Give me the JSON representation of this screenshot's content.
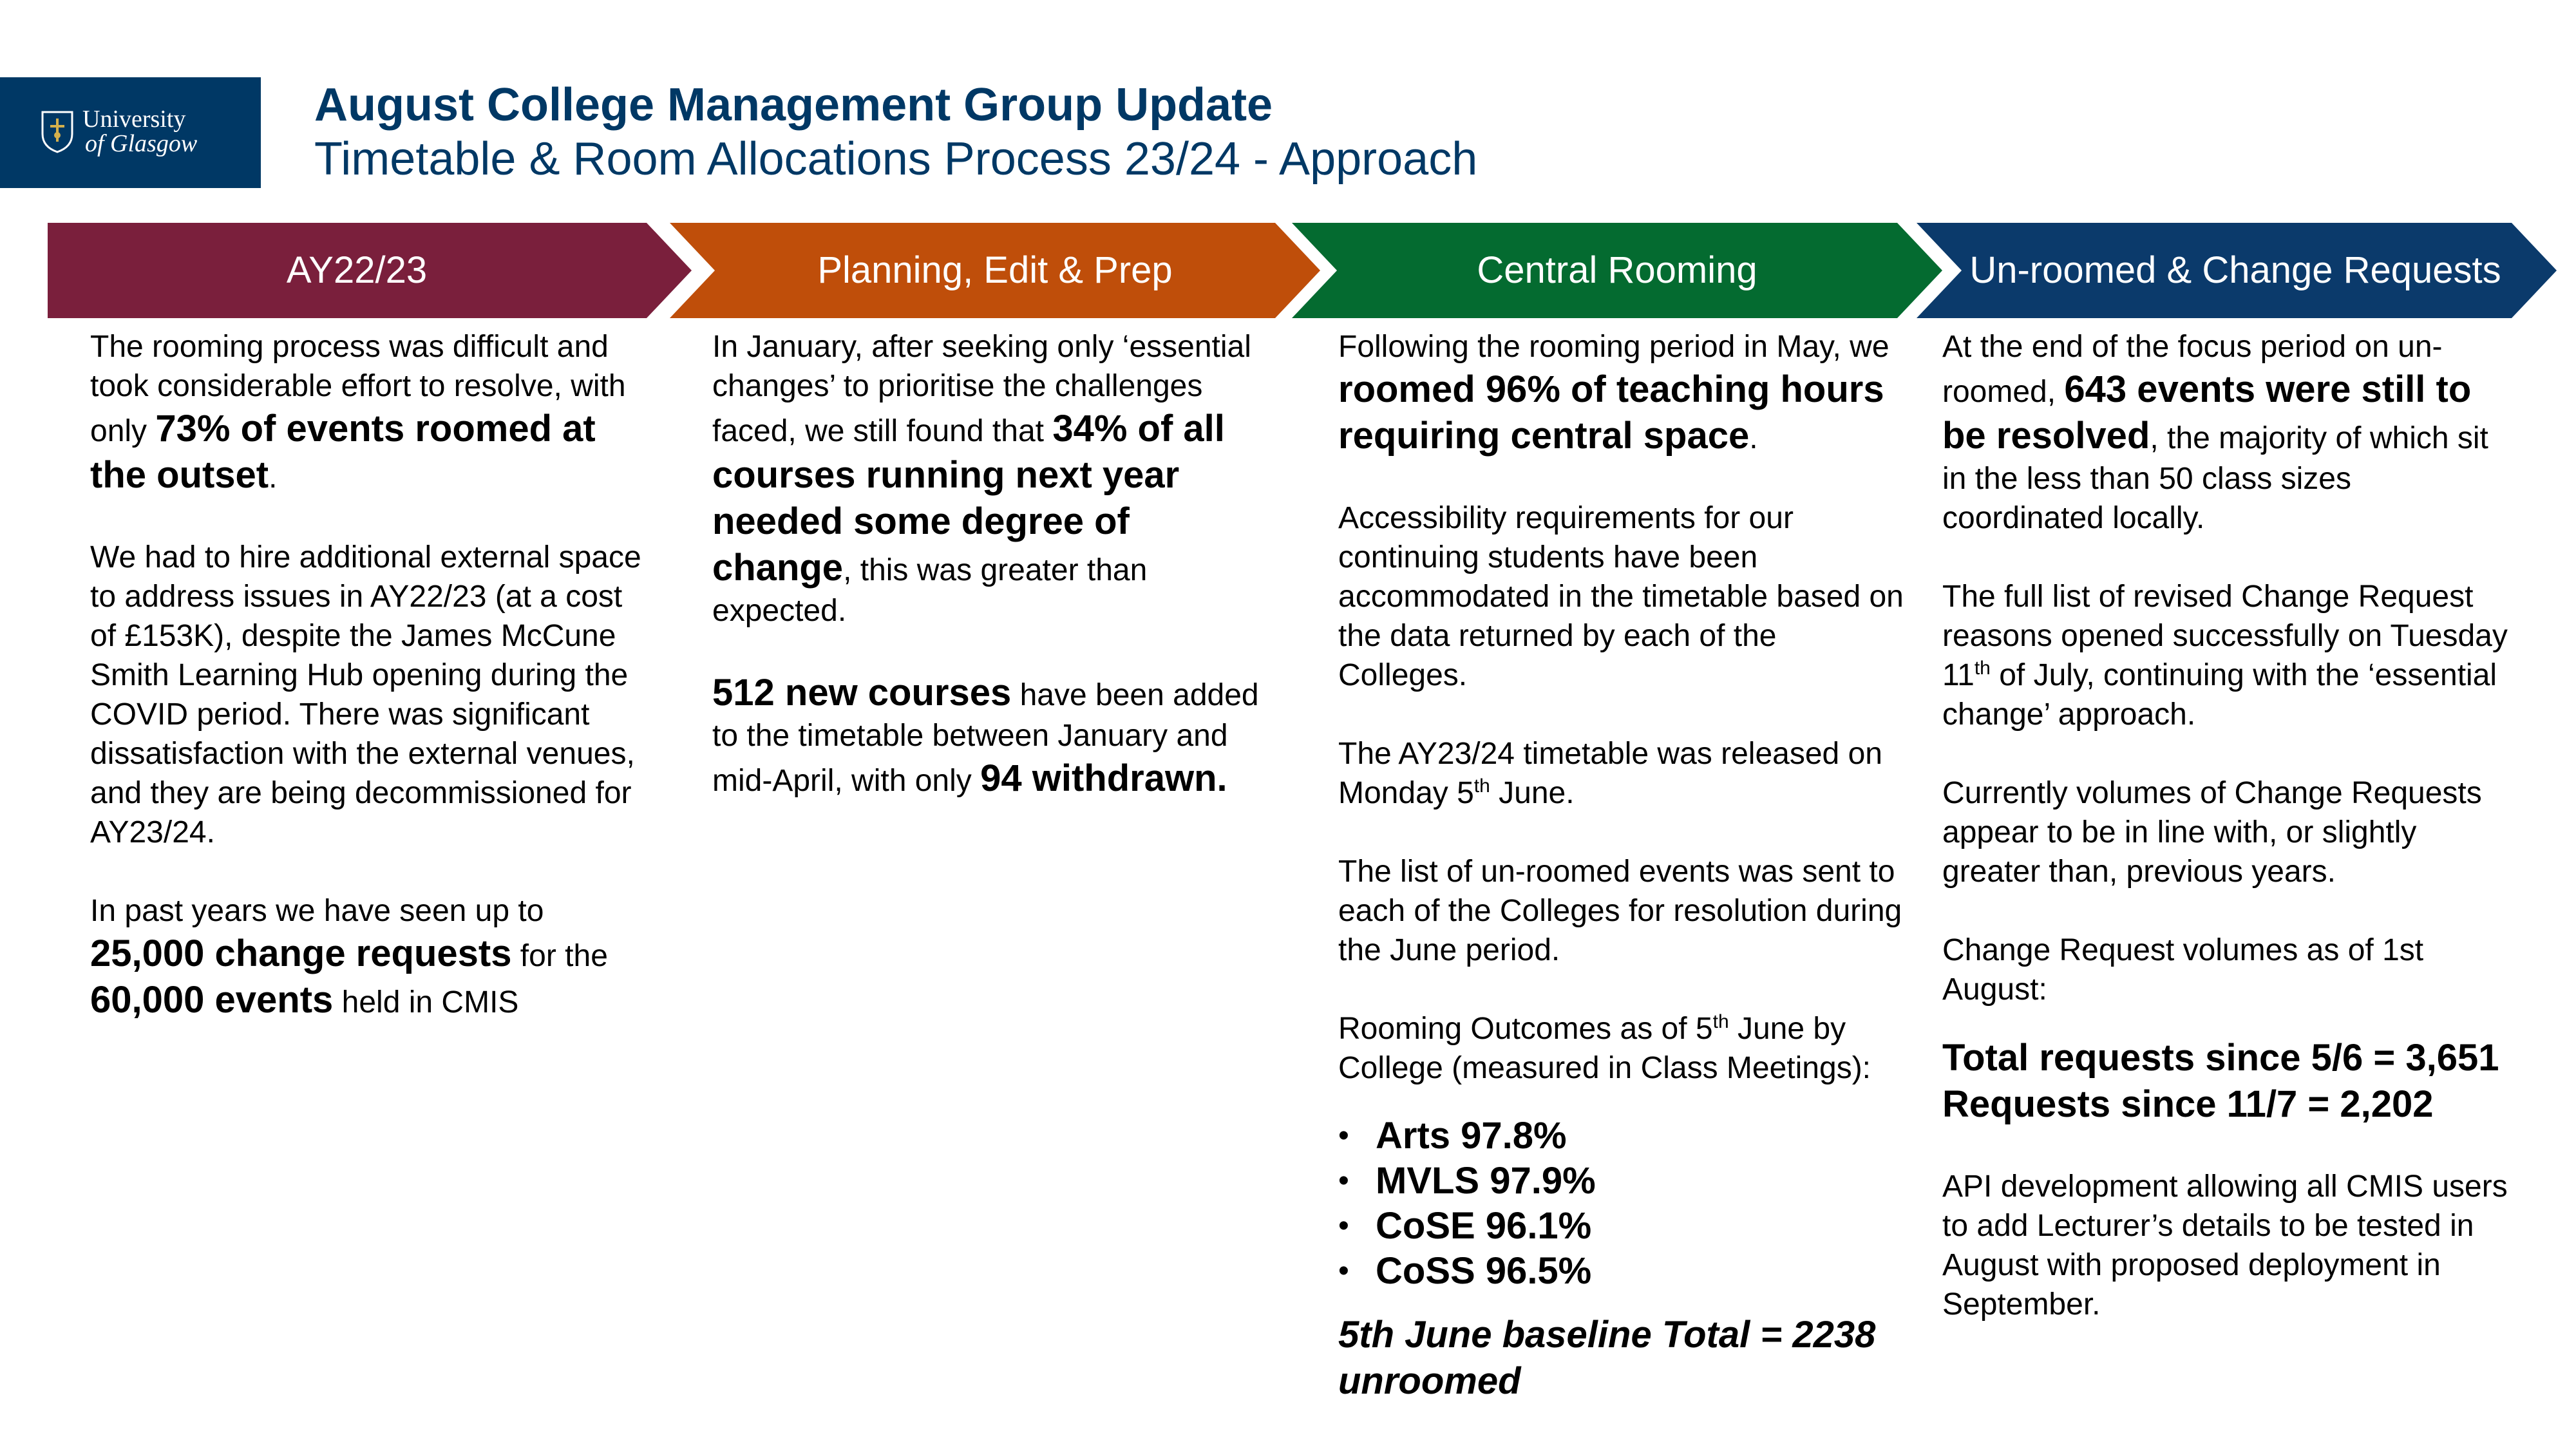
{
  "logo": {
    "line1": "University",
    "line2": "of Glasgow"
  },
  "header": {
    "title": "August College Management Group Update",
    "subtitle": "Timetable & Room Allocations Process 23/24 - Approach"
  },
  "stages": [
    {
      "label": "AY22/23",
      "color": "#7a1f3c"
    },
    {
      "label": "Planning, Edit & Prep",
      "color": "#bf4e0a"
    },
    {
      "label": "Central Rooming",
      "color": "#046b30"
    },
    {
      "label": "Un-roomed & Change Requests",
      "color": "#0b3a6b"
    }
  ],
  "col1": {
    "p1a": "The rooming process was difficult and took considerable effort to resolve, with only ",
    "p1b": "73% of events roomed at the outset",
    "p1c": ".",
    "p2": "We had to hire additional external space to address issues in AY22/23 (at a cost of £153K), despite the James McCune Smith Learning Hub opening during the COVID period. There was significant dissatisfaction with the external venues, and they are being decommissioned for AY23/24.",
    "p3a": "In past years we have seen up to ",
    "p3b": "25,000 change requests",
    "p3c": " for the ",
    "p3d": "60,000 events",
    "p3e": " held in CMIS"
  },
  "col2": {
    "p1a": "In January, after seeking only ‘essential changes’ to prioritise the challenges faced, we still found that ",
    "p1b": "34% of all courses running next year needed some degree of change",
    "p1c": ", this was greater than expected.",
    "p2a": "512 new courses",
    "p2b": " have been added to the timetable between January and mid-April, with only ",
    "p2c": "94 withdrawn."
  },
  "col3": {
    "p1a": "Following the rooming period in May, we ",
    "p1b": "roomed 96% of teaching hours requiring central space",
    "p1c": ".",
    "p2": "Accessibility requirements for our continuing students have been accommodated in the timetable based on the data returned by each of the Colleges.",
    "p3a": "The AY23/24 timetable was released on Monday 5",
    "p3sup": "th",
    "p3b": " June.",
    "p4": "The list of un-roomed events was sent to each of the Colleges for resolution during the June period.",
    "p5a": "Rooming Outcomes as of 5",
    "p5sup": "th",
    "p5b": " June by College (measured in Class Meetings):",
    "outcomes": [
      "Arts 97.8%",
      "MVLS 97.9%",
      "CoSE 96.1%",
      "CoSS 96.5%"
    ],
    "baseline": "5th June baseline Total = 2238 unroomed"
  },
  "col4": {
    "p1a": "At the end of the focus period on un-roomed, ",
    "p1b": "643 events were still to be resolved",
    "p1c": ", the majority of which sit in the less than 50 class sizes coordinated locally.",
    "p2a": "The full list of revised Change Request reasons opened successfully on Tuesday 11",
    "p2sup": "th",
    "p2b": " of July, continuing with the ‘essential change’ approach.",
    "p3": "Currently volumes of Change Requests appear to be in line with, or slightly greater than, previous years.",
    "p4": "Change Request volumes as of 1st August:",
    "total1": "Total requests since 5/6 = 3,651",
    "total2": "Requests since 11/7 = 2,202",
    "p5": "API development allowing all CMIS users to add Lecturer’s details to be tested in August with proposed deployment in September."
  }
}
